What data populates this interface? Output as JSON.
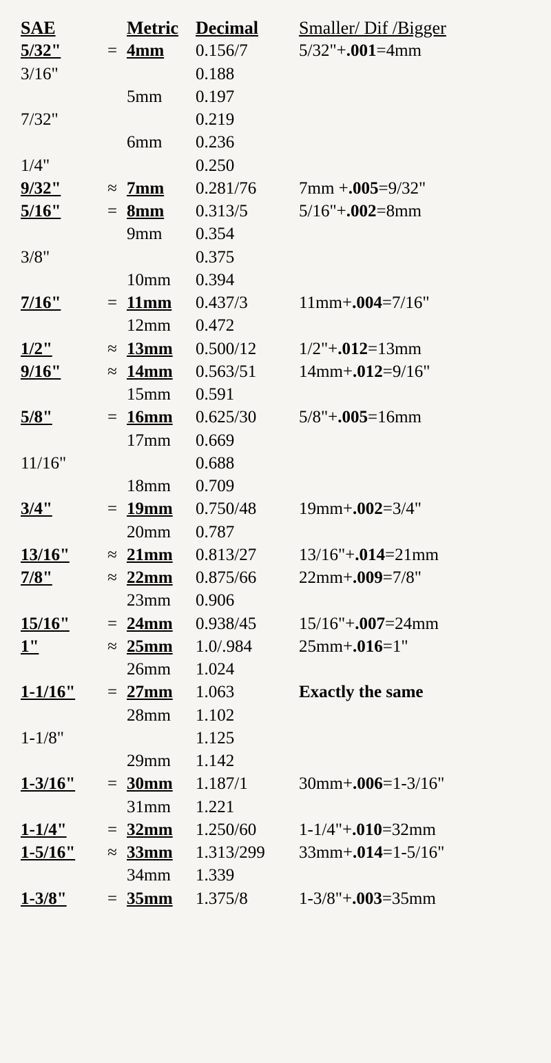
{
  "headers": {
    "sae": "SAE",
    "metric": "Metric",
    "decimal": "Decimal",
    "compare": "Smaller/ Dif /Bigger"
  },
  "rows": [
    {
      "sae": "5/32\"",
      "sae_style": "bu",
      "op": "=",
      "metric": "4mm",
      "metric_style": "bu",
      "dec": "0.156/7",
      "cmp_a": "5/32\"+",
      "cmp_b": ".001",
      "cmp_c": "=4mm"
    },
    {
      "sae": "3/16\"",
      "dec": "0.188"
    },
    {
      "metric": "5mm",
      "dec": "0.197"
    },
    {
      "sae": "7/32\"",
      "dec": "0.219"
    },
    {
      "metric": "6mm",
      "dec": "0.236"
    },
    {
      "sae": "1/4\"",
      "dec": "0.250"
    },
    {
      "sae": "9/32\"",
      "sae_style": "bu",
      "op": "≈",
      "metric": "7mm",
      "metric_style": "bu",
      "dec": "0.281/76",
      "cmp_a": "7mm +",
      "cmp_b": ".005",
      "cmp_c": "=9/32\""
    },
    {
      "sae": "5/16\"",
      "sae_style": "bu",
      "op": "=",
      "metric": "8mm",
      "metric_style": "bu",
      "dec": "0.313/5",
      "cmp_a": "5/16\"+",
      "cmp_b": ".002",
      "cmp_c": "=8mm"
    },
    {
      "metric": "9mm",
      "dec": "0.354"
    },
    {
      "sae": "3/8\"",
      "dec": "0.375"
    },
    {
      "metric": "10mm",
      "dec": "0.394"
    },
    {
      "sae": "7/16\"",
      "sae_style": "bu",
      "op": "=",
      "metric": "11mm",
      "metric_style": "bu",
      "dec": "0.437/3",
      "cmp_a": "11mm+",
      "cmp_b": ".004",
      "cmp_c": "=7/16\""
    },
    {
      "metric": "12mm",
      "dec": "0.472"
    },
    {
      "sae": "1/2\"",
      "sae_style": "bu",
      "op": "≈",
      "metric": "13mm",
      "metric_style": "bu",
      "dec": "0.500/12",
      "cmp_a": "1/2\"+",
      "cmp_b": ".012",
      "cmp_c": "=13mm"
    },
    {
      "sae": "9/16\"",
      "sae_style": "bu",
      "op": "≈",
      "metric": "14mm",
      "metric_style": "bu",
      "dec": "0.563/51",
      "cmp_a": "14mm+",
      "cmp_b": ".012",
      "cmp_c": "=9/16\""
    },
    {
      "metric": "15mm",
      "dec": "0.591"
    },
    {
      "sae": "5/8\"",
      "sae_style": "bu",
      "op": "=",
      "metric": "16mm",
      "metric_style": "bu",
      "dec": "0.625/30",
      "cmp_a": "5/8\"+",
      "cmp_b": ".005",
      "cmp_c": "=16mm"
    },
    {
      "metric": "17mm",
      "dec": "0.669"
    },
    {
      "sae": "11/16\"",
      "dec": "0.688"
    },
    {
      "metric": "18mm",
      "dec": "0.709"
    },
    {
      "sae": "3/4\"",
      "sae_style": "bu",
      "op": "=",
      "metric": "19mm",
      "metric_style": "bu",
      "dec": "0.750/48",
      "cmp_a": "19mm+",
      "cmp_b": ".002",
      "cmp_c": "=3/4\""
    },
    {
      "metric": "20mm",
      "dec": "0.787"
    },
    {
      "sae": "13/16\"",
      "sae_style": "bu",
      "op": "≈",
      "metric": "21mm",
      "metric_style": "bu",
      "dec": "0.813/27",
      "cmp_a": "13/16\"+",
      "cmp_b": ".014",
      "cmp_c": "=21mm"
    },
    {
      "sae": "7/8\"",
      "sae_style": "bu",
      "op": "≈",
      "metric": "22mm",
      "metric_style": "bu",
      "dec": "0.875/66",
      "cmp_a": "22mm+",
      "cmp_b": ".009",
      "cmp_c": "=7/8\""
    },
    {
      "metric": "23mm",
      "dec": "0.906"
    },
    {
      "sae": "15/16\"",
      "sae_style": "bu",
      "op": "=",
      "metric": "24mm",
      "metric_style": "bu",
      "dec": "0.938/45",
      "cmp_a": "15/16\"+",
      "cmp_b": ".007",
      "cmp_c": "=24mm"
    },
    {
      "sae": "1\"",
      "sae_style": "bu",
      "op": "≈",
      "metric": "25mm",
      "metric_style": "bu",
      "dec": "1.0/.984",
      "cmp_a": "25mm+",
      "cmp_b": ".016",
      "cmp_c": "=1\""
    },
    {
      "metric": "26mm",
      "dec": "1.024"
    },
    {
      "sae": "1-1/16\"",
      "sae_style": "bu",
      "op": "=",
      "metric": "27mm",
      "metric_style": "bu",
      "dec": "1.063",
      "cmp_plain": "Exactly the same",
      "cmp_plain_style": "b"
    },
    {
      "metric": "28mm",
      "dec": "1.102"
    },
    {
      "sae": "1-1/8\"",
      "dec": "1.125"
    },
    {
      "metric": "29mm",
      "dec": "1.142"
    },
    {
      "sae": "1-3/16\"",
      "sae_style": "bu",
      "op": "=",
      "metric": "30mm",
      "metric_style": "bu",
      "dec": "1.187/1",
      "cmp_a": "30mm+",
      "cmp_b": ".006",
      "cmp_c": "=1-3/16\""
    },
    {
      "metric": "31mm",
      "dec": "1.221"
    },
    {
      "sae": "1-1/4\"",
      "sae_style": "bu",
      "op": "=",
      "metric": "32mm",
      "metric_style": "bu",
      "dec": "1.250/60",
      "cmp_a": "1-1/4\"+",
      "cmp_b": ".010",
      "cmp_c": "=32mm"
    },
    {
      "sae": "1-5/16\"",
      "sae_style": "bu",
      "op": "≈",
      "metric": "33mm",
      "metric_style": "bu",
      "dec": "1.313/299",
      "cmp_a": "33mm+",
      "cmp_b": ".014",
      "cmp_c": "=1-5/16\""
    },
    {
      "metric": "34mm",
      "dec": "1.339"
    },
    {
      "sae": "1-3/8\"",
      "sae_style": "bu",
      "op": "=",
      "metric": "35mm",
      "metric_style": "bu",
      "dec": "1.375/8",
      "cmp_a": "1-3/8\"+",
      "cmp_b": ".003",
      "cmp_c": "=35mm"
    }
  ]
}
